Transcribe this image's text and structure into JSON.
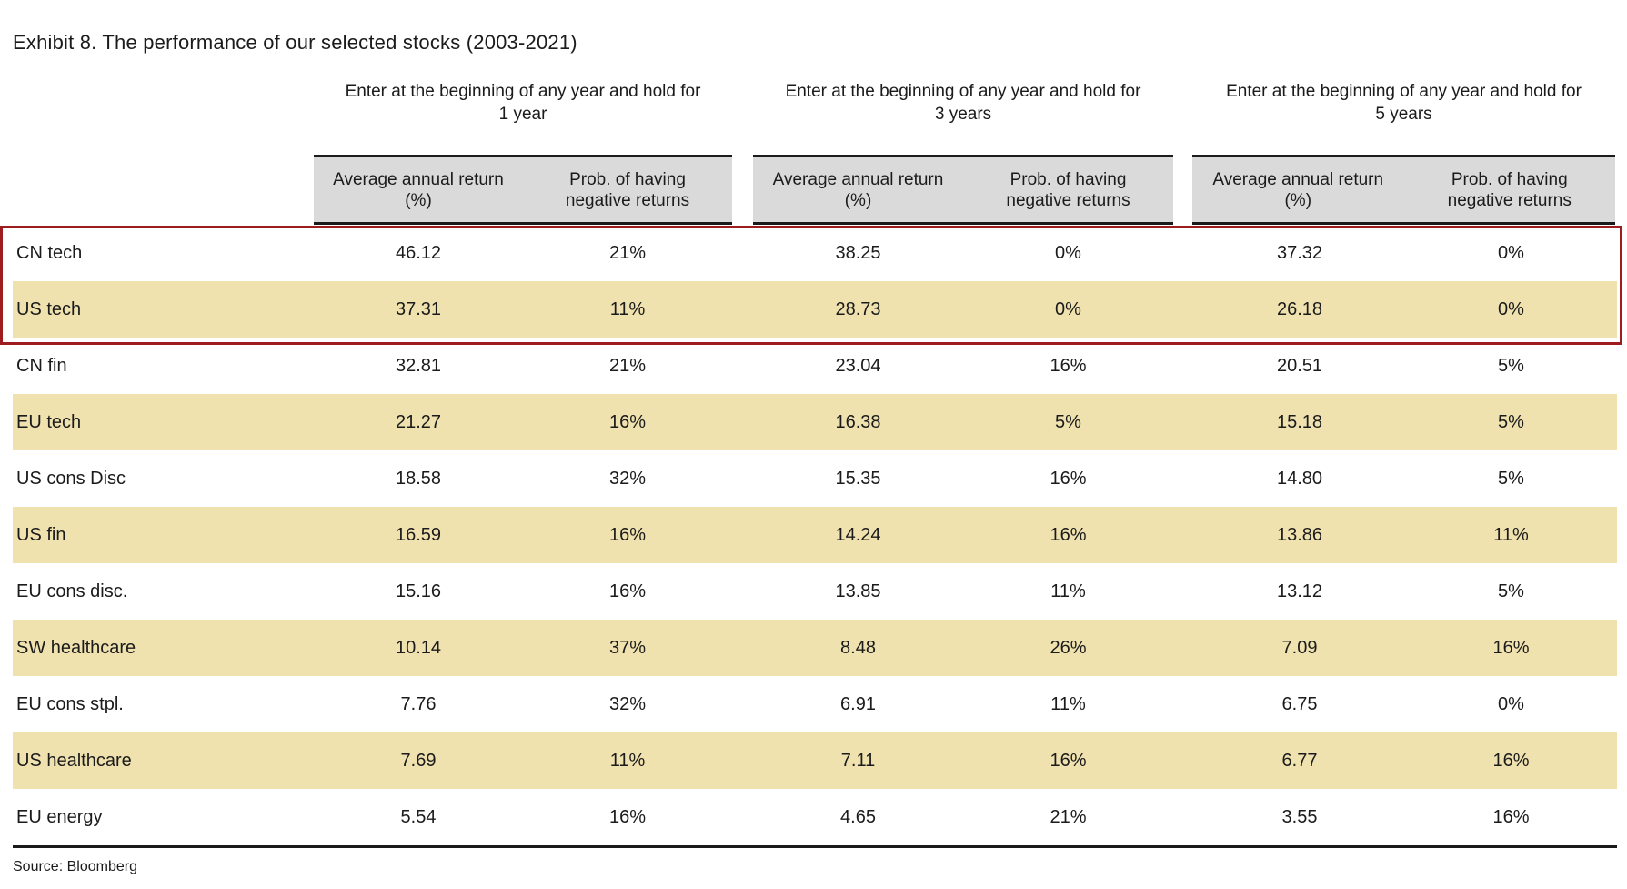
{
  "title": "Exhibit 8. The performance of our selected stocks (2003-2021)",
  "source": "Source: Bloomberg",
  "column_groups": [
    {
      "line1": "Enter at the beginning of any year and hold for",
      "line2": "1 year"
    },
    {
      "line1": "Enter at the beginning of any year and hold for",
      "line2": "3 years"
    },
    {
      "line1": "Enter at the beginning of any year and hold for",
      "line2": "5 years"
    }
  ],
  "sub_headers": [
    {
      "lines": [
        "Average annual return",
        "(%)"
      ]
    },
    {
      "lines": [
        "Prob. of having",
        "negative returns"
      ]
    }
  ],
  "table": {
    "value_columns_per_group": [
      "Average annual return (%)",
      "Prob. of having negative returns"
    ],
    "rows": [
      {
        "label": "CN tech",
        "values": [
          "46.12",
          "21%",
          "38.25",
          "0%",
          "37.32",
          "0%"
        ],
        "boxed": true
      },
      {
        "label": "US tech",
        "values": [
          "37.31",
          "11%",
          "28.73",
          "0%",
          "26.18",
          "0%"
        ],
        "boxed": true
      },
      {
        "label": "CN fin",
        "values": [
          "32.81",
          "21%",
          "23.04",
          "16%",
          "20.51",
          "5%"
        ],
        "boxed": false
      },
      {
        "label": "EU tech",
        "values": [
          "21.27",
          "16%",
          "16.38",
          "5%",
          "15.18",
          "5%"
        ],
        "boxed": false
      },
      {
        "label": "US cons Disc",
        "values": [
          "18.58",
          "32%",
          "15.35",
          "16%",
          "14.80",
          "5%"
        ],
        "boxed": false
      },
      {
        "label": "US fin",
        "values": [
          "16.59",
          "16%",
          "14.24",
          "16%",
          "13.86",
          "11%"
        ],
        "boxed": false
      },
      {
        "label": "EU cons disc.",
        "values": [
          "15.16",
          "16%",
          "13.85",
          "11%",
          "13.12",
          "5%"
        ],
        "boxed": false
      },
      {
        "label": "SW healthcare",
        "values": [
          "10.14",
          "37%",
          "8.48",
          "26%",
          "7.09",
          "16%"
        ],
        "boxed": false
      },
      {
        "label": "EU cons stpl.",
        "values": [
          "7.76",
          "32%",
          "6.91",
          "11%",
          "6.75",
          "0%"
        ],
        "boxed": false
      },
      {
        "label": "US healthcare",
        "values": [
          "7.69",
          "11%",
          "7.11",
          "16%",
          "6.77",
          "16%"
        ],
        "boxed": false
      },
      {
        "label": "EU energy",
        "values": [
          "5.54",
          "16%",
          "4.65",
          "21%",
          "3.55",
          "16%"
        ],
        "boxed": false
      }
    ]
  },
  "colors": {
    "shaded_row": "#F0E2AF",
    "header_band": "#DADADA",
    "annotation_box_border": "#9D1C1E",
    "rule_lines": "#1B1B1B"
  }
}
